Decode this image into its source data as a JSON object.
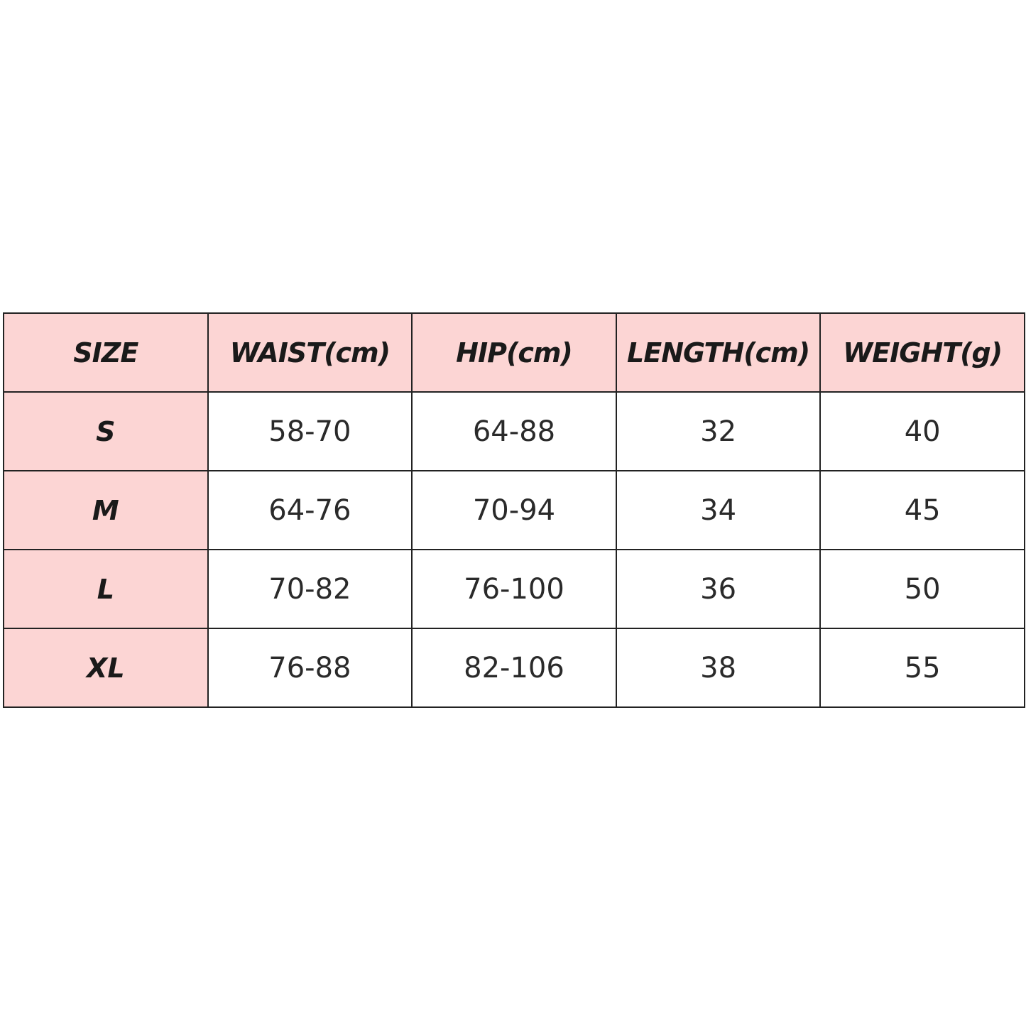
{
  "table": {
    "headers": [
      "SIZE",
      "WAIST(cm)",
      "HIP(cm)",
      "LENGTH(cm)",
      "WEIGHT(g)"
    ],
    "rows": [
      [
        "S",
        "58-70",
        "64-88",
        "32",
        "40"
      ],
      [
        "M",
        "64-76",
        "70-94",
        "34",
        "45"
      ],
      [
        "L",
        "70-82",
        "76-100",
        "36",
        "50"
      ],
      [
        "XL",
        "76-88",
        "82-106",
        "38",
        "55"
      ]
    ]
  },
  "colors": {
    "header_bg": "#fcd5d4",
    "border": "#222222"
  }
}
